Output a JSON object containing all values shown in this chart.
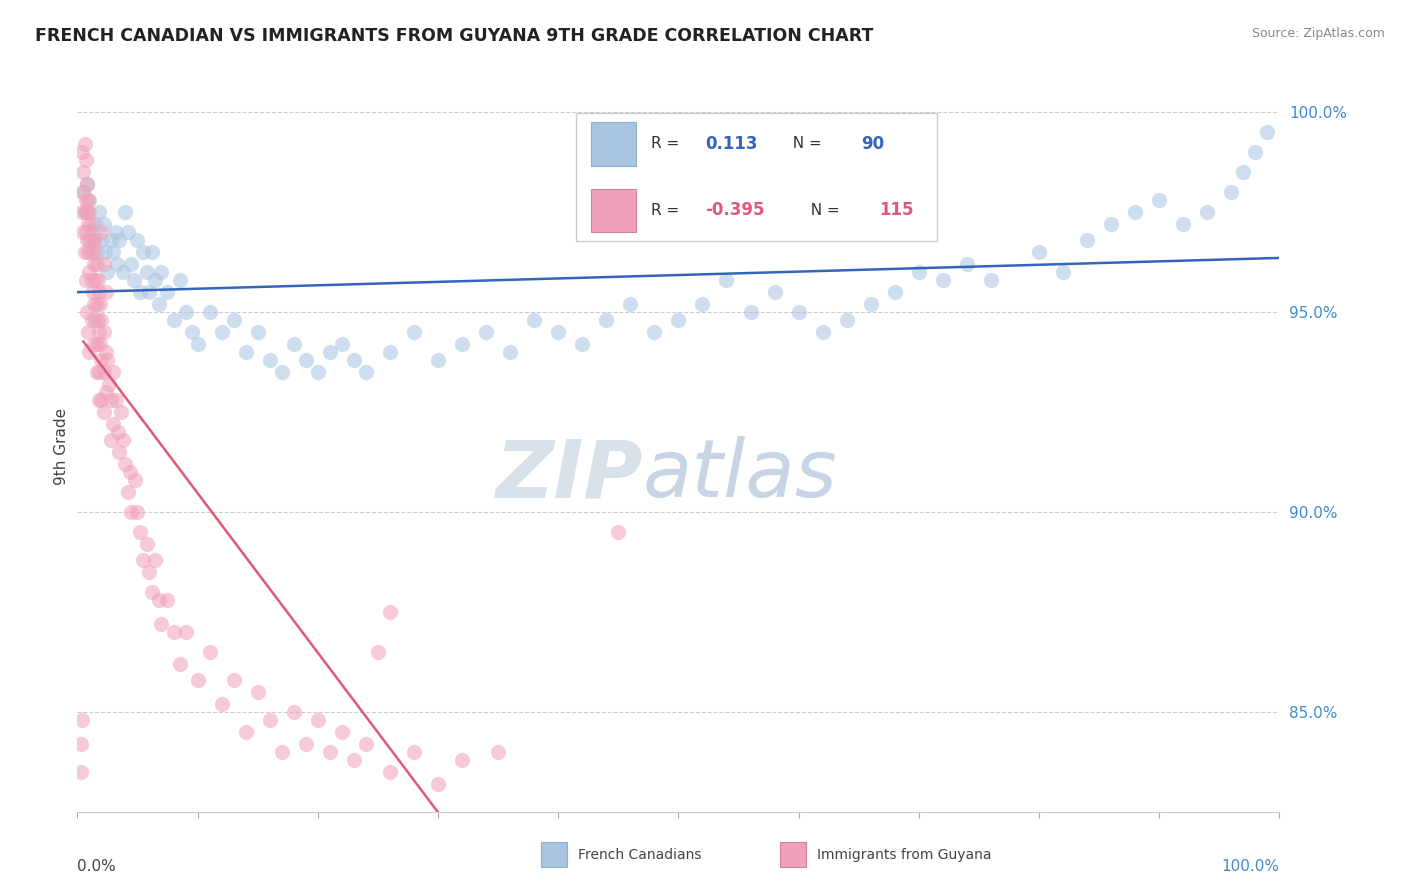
{
  "title": "FRENCH CANADIAN VS IMMIGRANTS FROM GUYANA 9TH GRADE CORRELATION CHART",
  "source": "Source: ZipAtlas.com",
  "ylabel": "9th Grade",
  "R_blue": 0.113,
  "N_blue": 90,
  "R_pink": -0.395,
  "N_pink": 115,
  "blue_dot_color": "#a8c4e0",
  "pink_dot_color": "#f0a0b8",
  "blue_line_color": "#3366bb",
  "pink_line_color": "#e05878",
  "pink_line_dashed_color": "#e0b0bc",
  "watermark_zip_color": "#c8d4e0",
  "watermark_atlas_color": "#90aac8",
  "background": "#ffffff",
  "ylim_min": 0.825,
  "ylim_max": 1.008,
  "xlim_min": 0.0,
  "xlim_max": 1.0,
  "ytick_values": [
    0.85,
    0.9,
    0.95,
    1.0
  ],
  "ytick_labels": [
    "85.0%",
    "90.0%",
    "95.0%",
    "100.0%"
  ],
  "blue_dots": [
    [
      0.005,
      0.98
    ],
    [
      0.007,
      0.975
    ],
    [
      0.008,
      0.982
    ],
    [
      0.01,
      0.978
    ],
    [
      0.012,
      0.97
    ],
    [
      0.013,
      0.968
    ],
    [
      0.015,
      0.972
    ],
    [
      0.016,
      0.965
    ],
    [
      0.018,
      0.975
    ],
    [
      0.02,
      0.968
    ],
    [
      0.022,
      0.972
    ],
    [
      0.023,
      0.965
    ],
    [
      0.025,
      0.96
    ],
    [
      0.028,
      0.968
    ],
    [
      0.03,
      0.965
    ],
    [
      0.032,
      0.97
    ],
    [
      0.033,
      0.962
    ],
    [
      0.035,
      0.968
    ],
    [
      0.038,
      0.96
    ],
    [
      0.04,
      0.975
    ],
    [
      0.042,
      0.97
    ],
    [
      0.045,
      0.962
    ],
    [
      0.047,
      0.958
    ],
    [
      0.05,
      0.968
    ],
    [
      0.052,
      0.955
    ],
    [
      0.055,
      0.965
    ],
    [
      0.058,
      0.96
    ],
    [
      0.06,
      0.955
    ],
    [
      0.062,
      0.965
    ],
    [
      0.065,
      0.958
    ],
    [
      0.068,
      0.952
    ],
    [
      0.07,
      0.96
    ],
    [
      0.075,
      0.955
    ],
    [
      0.08,
      0.948
    ],
    [
      0.085,
      0.958
    ],
    [
      0.09,
      0.95
    ],
    [
      0.095,
      0.945
    ],
    [
      0.1,
      0.942
    ],
    [
      0.11,
      0.95
    ],
    [
      0.12,
      0.945
    ],
    [
      0.13,
      0.948
    ],
    [
      0.14,
      0.94
    ],
    [
      0.15,
      0.945
    ],
    [
      0.16,
      0.938
    ],
    [
      0.17,
      0.935
    ],
    [
      0.18,
      0.942
    ],
    [
      0.19,
      0.938
    ],
    [
      0.2,
      0.935
    ],
    [
      0.21,
      0.94
    ],
    [
      0.22,
      0.942
    ],
    [
      0.23,
      0.938
    ],
    [
      0.24,
      0.935
    ],
    [
      0.26,
      0.94
    ],
    [
      0.28,
      0.945
    ],
    [
      0.3,
      0.938
    ],
    [
      0.32,
      0.942
    ],
    [
      0.34,
      0.945
    ],
    [
      0.36,
      0.94
    ],
    [
      0.38,
      0.948
    ],
    [
      0.4,
      0.945
    ],
    [
      0.42,
      0.942
    ],
    [
      0.44,
      0.948
    ],
    [
      0.46,
      0.952
    ],
    [
      0.48,
      0.945
    ],
    [
      0.5,
      0.948
    ],
    [
      0.52,
      0.952
    ],
    [
      0.54,
      0.958
    ],
    [
      0.56,
      0.95
    ],
    [
      0.58,
      0.955
    ],
    [
      0.6,
      0.95
    ],
    [
      0.62,
      0.945
    ],
    [
      0.64,
      0.948
    ],
    [
      0.66,
      0.952
    ],
    [
      0.68,
      0.955
    ],
    [
      0.7,
      0.96
    ],
    [
      0.72,
      0.958
    ],
    [
      0.74,
      0.962
    ],
    [
      0.76,
      0.958
    ],
    [
      0.8,
      0.965
    ],
    [
      0.82,
      0.96
    ],
    [
      0.84,
      0.968
    ],
    [
      0.86,
      0.972
    ],
    [
      0.88,
      0.975
    ],
    [
      0.9,
      0.978
    ],
    [
      0.92,
      0.972
    ],
    [
      0.94,
      0.975
    ],
    [
      0.96,
      0.98
    ],
    [
      0.97,
      0.985
    ],
    [
      0.98,
      0.99
    ],
    [
      0.99,
      0.995
    ]
  ],
  "pink_dots": [
    [
      0.004,
      0.99
    ],
    [
      0.005,
      0.985
    ],
    [
      0.005,
      0.98
    ],
    [
      0.006,
      0.992
    ],
    [
      0.006,
      0.975
    ],
    [
      0.007,
      0.988
    ],
    [
      0.007,
      0.978
    ],
    [
      0.007,
      0.97
    ],
    [
      0.008,
      0.982
    ],
    [
      0.008,
      0.975
    ],
    [
      0.008,
      0.968
    ],
    [
      0.009,
      0.978
    ],
    [
      0.009,
      0.972
    ],
    [
      0.009,
      0.965
    ],
    [
      0.01,
      0.975
    ],
    [
      0.01,
      0.968
    ],
    [
      0.01,
      0.96
    ],
    [
      0.011,
      0.972
    ],
    [
      0.011,
      0.965
    ],
    [
      0.012,
      0.968
    ],
    [
      0.012,
      0.958
    ],
    [
      0.013,
      0.965
    ],
    [
      0.013,
      0.955
    ],
    [
      0.014,
      0.962
    ],
    [
      0.014,
      0.952
    ],
    [
      0.015,
      0.968
    ],
    [
      0.015,
      0.958
    ],
    [
      0.015,
      0.948
    ],
    [
      0.016,
      0.962
    ],
    [
      0.016,
      0.952
    ],
    [
      0.016,
      0.942
    ],
    [
      0.017,
      0.958
    ],
    [
      0.017,
      0.948
    ],
    [
      0.018,
      0.955
    ],
    [
      0.018,
      0.945
    ],
    [
      0.018,
      0.935
    ],
    [
      0.019,
      0.952
    ],
    [
      0.019,
      0.942
    ],
    [
      0.02,
      0.948
    ],
    [
      0.02,
      0.938
    ],
    [
      0.02,
      0.928
    ],
    [
      0.022,
      0.945
    ],
    [
      0.022,
      0.935
    ],
    [
      0.022,
      0.925
    ],
    [
      0.024,
      0.94
    ],
    [
      0.024,
      0.93
    ],
    [
      0.025,
      0.938
    ],
    [
      0.026,
      0.932
    ],
    [
      0.028,
      0.928
    ],
    [
      0.028,
      0.918
    ],
    [
      0.03,
      0.935
    ],
    [
      0.03,
      0.922
    ],
    [
      0.032,
      0.928
    ],
    [
      0.034,
      0.92
    ],
    [
      0.035,
      0.915
    ],
    [
      0.036,
      0.925
    ],
    [
      0.038,
      0.918
    ],
    [
      0.04,
      0.912
    ],
    [
      0.042,
      0.905
    ],
    [
      0.044,
      0.91
    ],
    [
      0.045,
      0.9
    ],
    [
      0.048,
      0.908
    ],
    [
      0.05,
      0.9
    ],
    [
      0.052,
      0.895
    ],
    [
      0.055,
      0.888
    ],
    [
      0.058,
      0.892
    ],
    [
      0.06,
      0.885
    ],
    [
      0.062,
      0.88
    ],
    [
      0.065,
      0.888
    ],
    [
      0.068,
      0.878
    ],
    [
      0.07,
      0.872
    ],
    [
      0.075,
      0.878
    ],
    [
      0.08,
      0.87
    ],
    [
      0.085,
      0.862
    ],
    [
      0.09,
      0.87
    ],
    [
      0.1,
      0.858
    ],
    [
      0.11,
      0.865
    ],
    [
      0.12,
      0.852
    ],
    [
      0.13,
      0.858
    ],
    [
      0.14,
      0.845
    ],
    [
      0.15,
      0.855
    ],
    [
      0.16,
      0.848
    ],
    [
      0.17,
      0.84
    ],
    [
      0.18,
      0.85
    ],
    [
      0.19,
      0.842
    ],
    [
      0.2,
      0.848
    ],
    [
      0.21,
      0.84
    ],
    [
      0.22,
      0.845
    ],
    [
      0.23,
      0.838
    ],
    [
      0.24,
      0.842
    ],
    [
      0.26,
      0.835
    ],
    [
      0.28,
      0.84
    ],
    [
      0.3,
      0.832
    ],
    [
      0.02,
      0.97
    ],
    [
      0.022,
      0.962
    ],
    [
      0.024,
      0.955
    ],
    [
      0.003,
      0.835
    ],
    [
      0.003,
      0.842
    ],
    [
      0.004,
      0.848
    ],
    [
      0.32,
      0.838
    ],
    [
      0.35,
      0.84
    ],
    [
      0.004,
      0.975
    ],
    [
      0.005,
      0.97
    ],
    [
      0.006,
      0.965
    ],
    [
      0.007,
      0.958
    ],
    [
      0.008,
      0.95
    ],
    [
      0.009,
      0.945
    ],
    [
      0.01,
      0.94
    ],
    [
      0.012,
      0.948
    ],
    [
      0.014,
      0.942
    ],
    [
      0.016,
      0.935
    ],
    [
      0.018,
      0.928
    ],
    [
      0.45,
      0.895
    ],
    [
      0.25,
      0.865
    ],
    [
      0.26,
      0.875
    ]
  ],
  "blue_line_x_start": 0.0,
  "blue_line_x_end": 1.0,
  "pink_line_solid_x_start": 0.005,
  "pink_line_solid_x_end": 0.33,
  "pink_line_dashed_x_start": 0.33,
  "pink_line_dashed_x_end": 1.0,
  "legend_R_blue_text": "R =   0.113   N = 90",
  "legend_R_pink_text": "R = -0.395   N = 115",
  "legend_blue_label": "French Canadians",
  "legend_pink_label": "Immigrants from Guyana"
}
